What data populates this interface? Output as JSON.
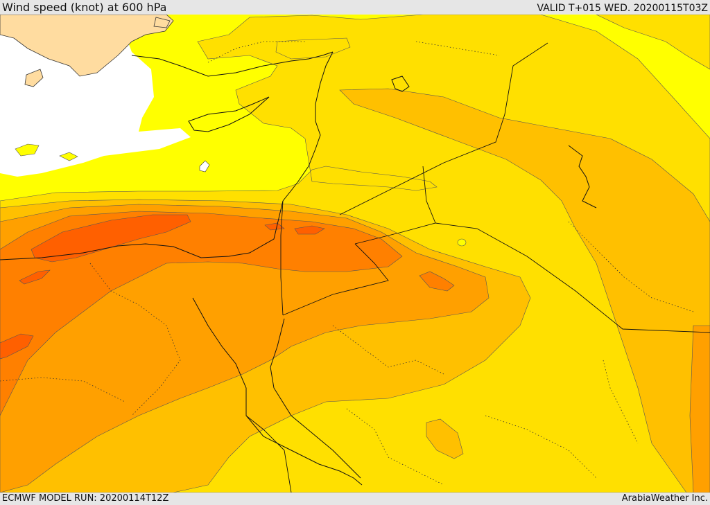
{
  "header": {
    "title": "Wind speed (knot) at 600 hPa",
    "valid": "VALID T+015 WED. 20200115T03Z"
  },
  "footer": {
    "model_run": "ECMWF MODEL RUN: 20200114T12Z",
    "brand": "ArabiaWeather Inc."
  },
  "colors": {
    "no_fill": "#ffffff",
    "band_1": "#ffff00",
    "band_2": "#ffe000",
    "band_3": "#ffc000",
    "band_4": "#ffa000",
    "band_5": "#ff8000",
    "band_6": "#ff6000",
    "land_sand": "#ffdca0"
  }
}
